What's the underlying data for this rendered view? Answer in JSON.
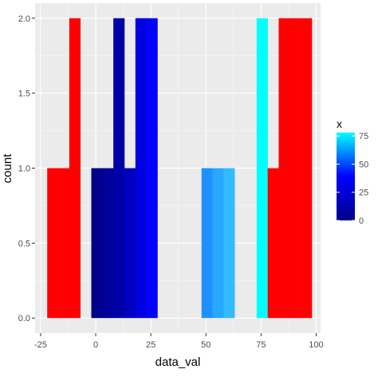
{
  "chart_data": {
    "type": "bar",
    "xlabel": "data_val",
    "ylabel": "count",
    "xlim": [
      -27.5,
      102
    ],
    "ylim": [
      -0.1,
      2.1
    ],
    "x_ticks": [
      -25,
      0,
      25,
      50,
      75,
      100
    ],
    "x_tick_labels": [
      "-25",
      "0",
      "25",
      "50",
      "75",
      "100"
    ],
    "y_ticks": [
      0,
      0.5,
      1.0,
      1.5,
      2.0
    ],
    "y_tick_labels": [
      "0.0",
      "0.5",
      "1.0",
      "1.5",
      "2.0"
    ],
    "grid": true,
    "legend": {
      "title": "x",
      "position": "right",
      "type": "colorbar",
      "tick_values": [
        0,
        25,
        50,
        75
      ],
      "tick_labels": [
        "0",
        "25",
        "50",
        "75"
      ],
      "range": [
        0,
        78
      ],
      "colors": [
        "#00008B",
        "#0000FF",
        "#00FFFF"
      ]
    },
    "bars": [
      {
        "x0": -22,
        "x1": -17,
        "count": 1,
        "color": "#FF0000"
      },
      {
        "x0": -17,
        "x1": -12,
        "count": 1,
        "color": "#FF0000"
      },
      {
        "x0": -12,
        "x1": -7,
        "count": 2,
        "color": "#FF0000"
      },
      {
        "x0": -2,
        "x1": 3,
        "count": 1,
        "color": "#00008B"
      },
      {
        "x0": 3,
        "x1": 8,
        "count": 1,
        "color": "#00009A"
      },
      {
        "x0": 8,
        "x1": 13,
        "count": 2,
        "color": "#0000A8"
      },
      {
        "x0": 13,
        "x1": 18,
        "count": 1,
        "color": "#0000C0"
      },
      {
        "x0": 18,
        "x1": 23,
        "count": 2,
        "color": "#0000E0"
      },
      {
        "x0": 23,
        "x1": 28,
        "count": 2,
        "color": "#0000FF"
      },
      {
        "x0": 48,
        "x1": 53,
        "count": 1,
        "color": "#1E90FF"
      },
      {
        "x0": 53,
        "x1": 58,
        "count": 1,
        "color": "#28A8FF"
      },
      {
        "x0": 58,
        "x1": 63,
        "count": 1,
        "color": "#33BBFF"
      },
      {
        "x0": 73,
        "x1": 78,
        "count": 2,
        "color": "#00FFFF"
      },
      {
        "x0": 78,
        "x1": 83,
        "count": 1,
        "color": "#FF0000"
      },
      {
        "x0": 83,
        "x1": 88,
        "count": 2,
        "color": "#FF0000"
      },
      {
        "x0": 88,
        "x1": 93,
        "count": 2,
        "color": "#FF0000"
      },
      {
        "x0": 93,
        "x1": 98,
        "count": 2,
        "color": "#FF0000"
      }
    ]
  }
}
